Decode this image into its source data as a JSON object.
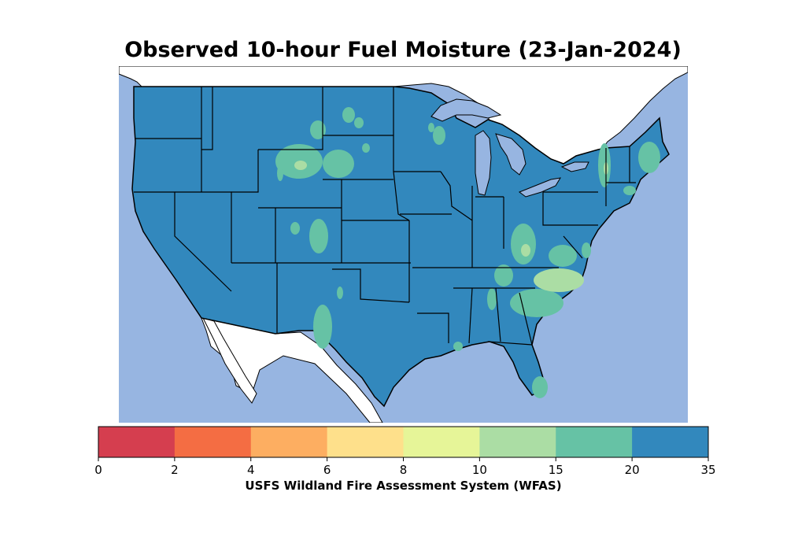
{
  "title": "Observed 10-hour Fuel Moisture (23-Jan-2024)",
  "colorbar": {
    "label": "USFS Wildland Fire Assessment System (WFAS)",
    "ticks": [
      "0",
      "2",
      "4",
      "6",
      "8",
      "10",
      "15",
      "20",
      "35"
    ],
    "bins": [
      {
        "from": 0,
        "to": 2,
        "color": "#d53e4f"
      },
      {
        "from": 2,
        "to": 4,
        "color": "#f46d43"
      },
      {
        "from": 4,
        "to": 6,
        "color": "#fdae61"
      },
      {
        "from": 6,
        "to": 8,
        "color": "#fee08b"
      },
      {
        "from": 8,
        "to": 10,
        "color": "#e6f598"
      },
      {
        "from": 10,
        "to": 15,
        "color": "#abdda4"
      },
      {
        "from": 15,
        "to": 20,
        "color": "#66c2a5"
      },
      {
        "from": 20,
        "to": 35,
        "color": "#3288bd"
      }
    ]
  },
  "colors": {
    "water": "#97b5e1",
    "land_outside": "#ffffff",
    "dominant_fill": "#3288bd",
    "border": "#000000"
  }
}
